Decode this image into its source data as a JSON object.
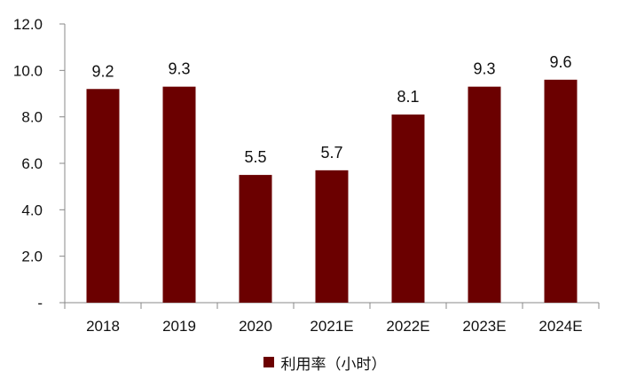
{
  "chart_data": {
    "type": "bar",
    "categories": [
      "2018",
      "2019",
      "2020",
      "2021E",
      "2022E",
      "2023E",
      "2024E"
    ],
    "series": [
      {
        "name": "利用率（小时）",
        "values": [
          9.2,
          9.3,
          5.5,
          5.7,
          8.1,
          9.3,
          9.6
        ],
        "color": "#6B0000"
      }
    ],
    "data_labels": [
      "9.2",
      "9.3",
      "5.5",
      "5.7",
      "8.1",
      "9.3",
      "9.6"
    ],
    "y_ticks": [
      "-",
      "2.0",
      "4.0",
      "6.0",
      "8.0",
      "10.0",
      "12.0"
    ],
    "ylim": [
      0,
      12
    ],
    "grid": false,
    "legend_position": "bottom"
  }
}
